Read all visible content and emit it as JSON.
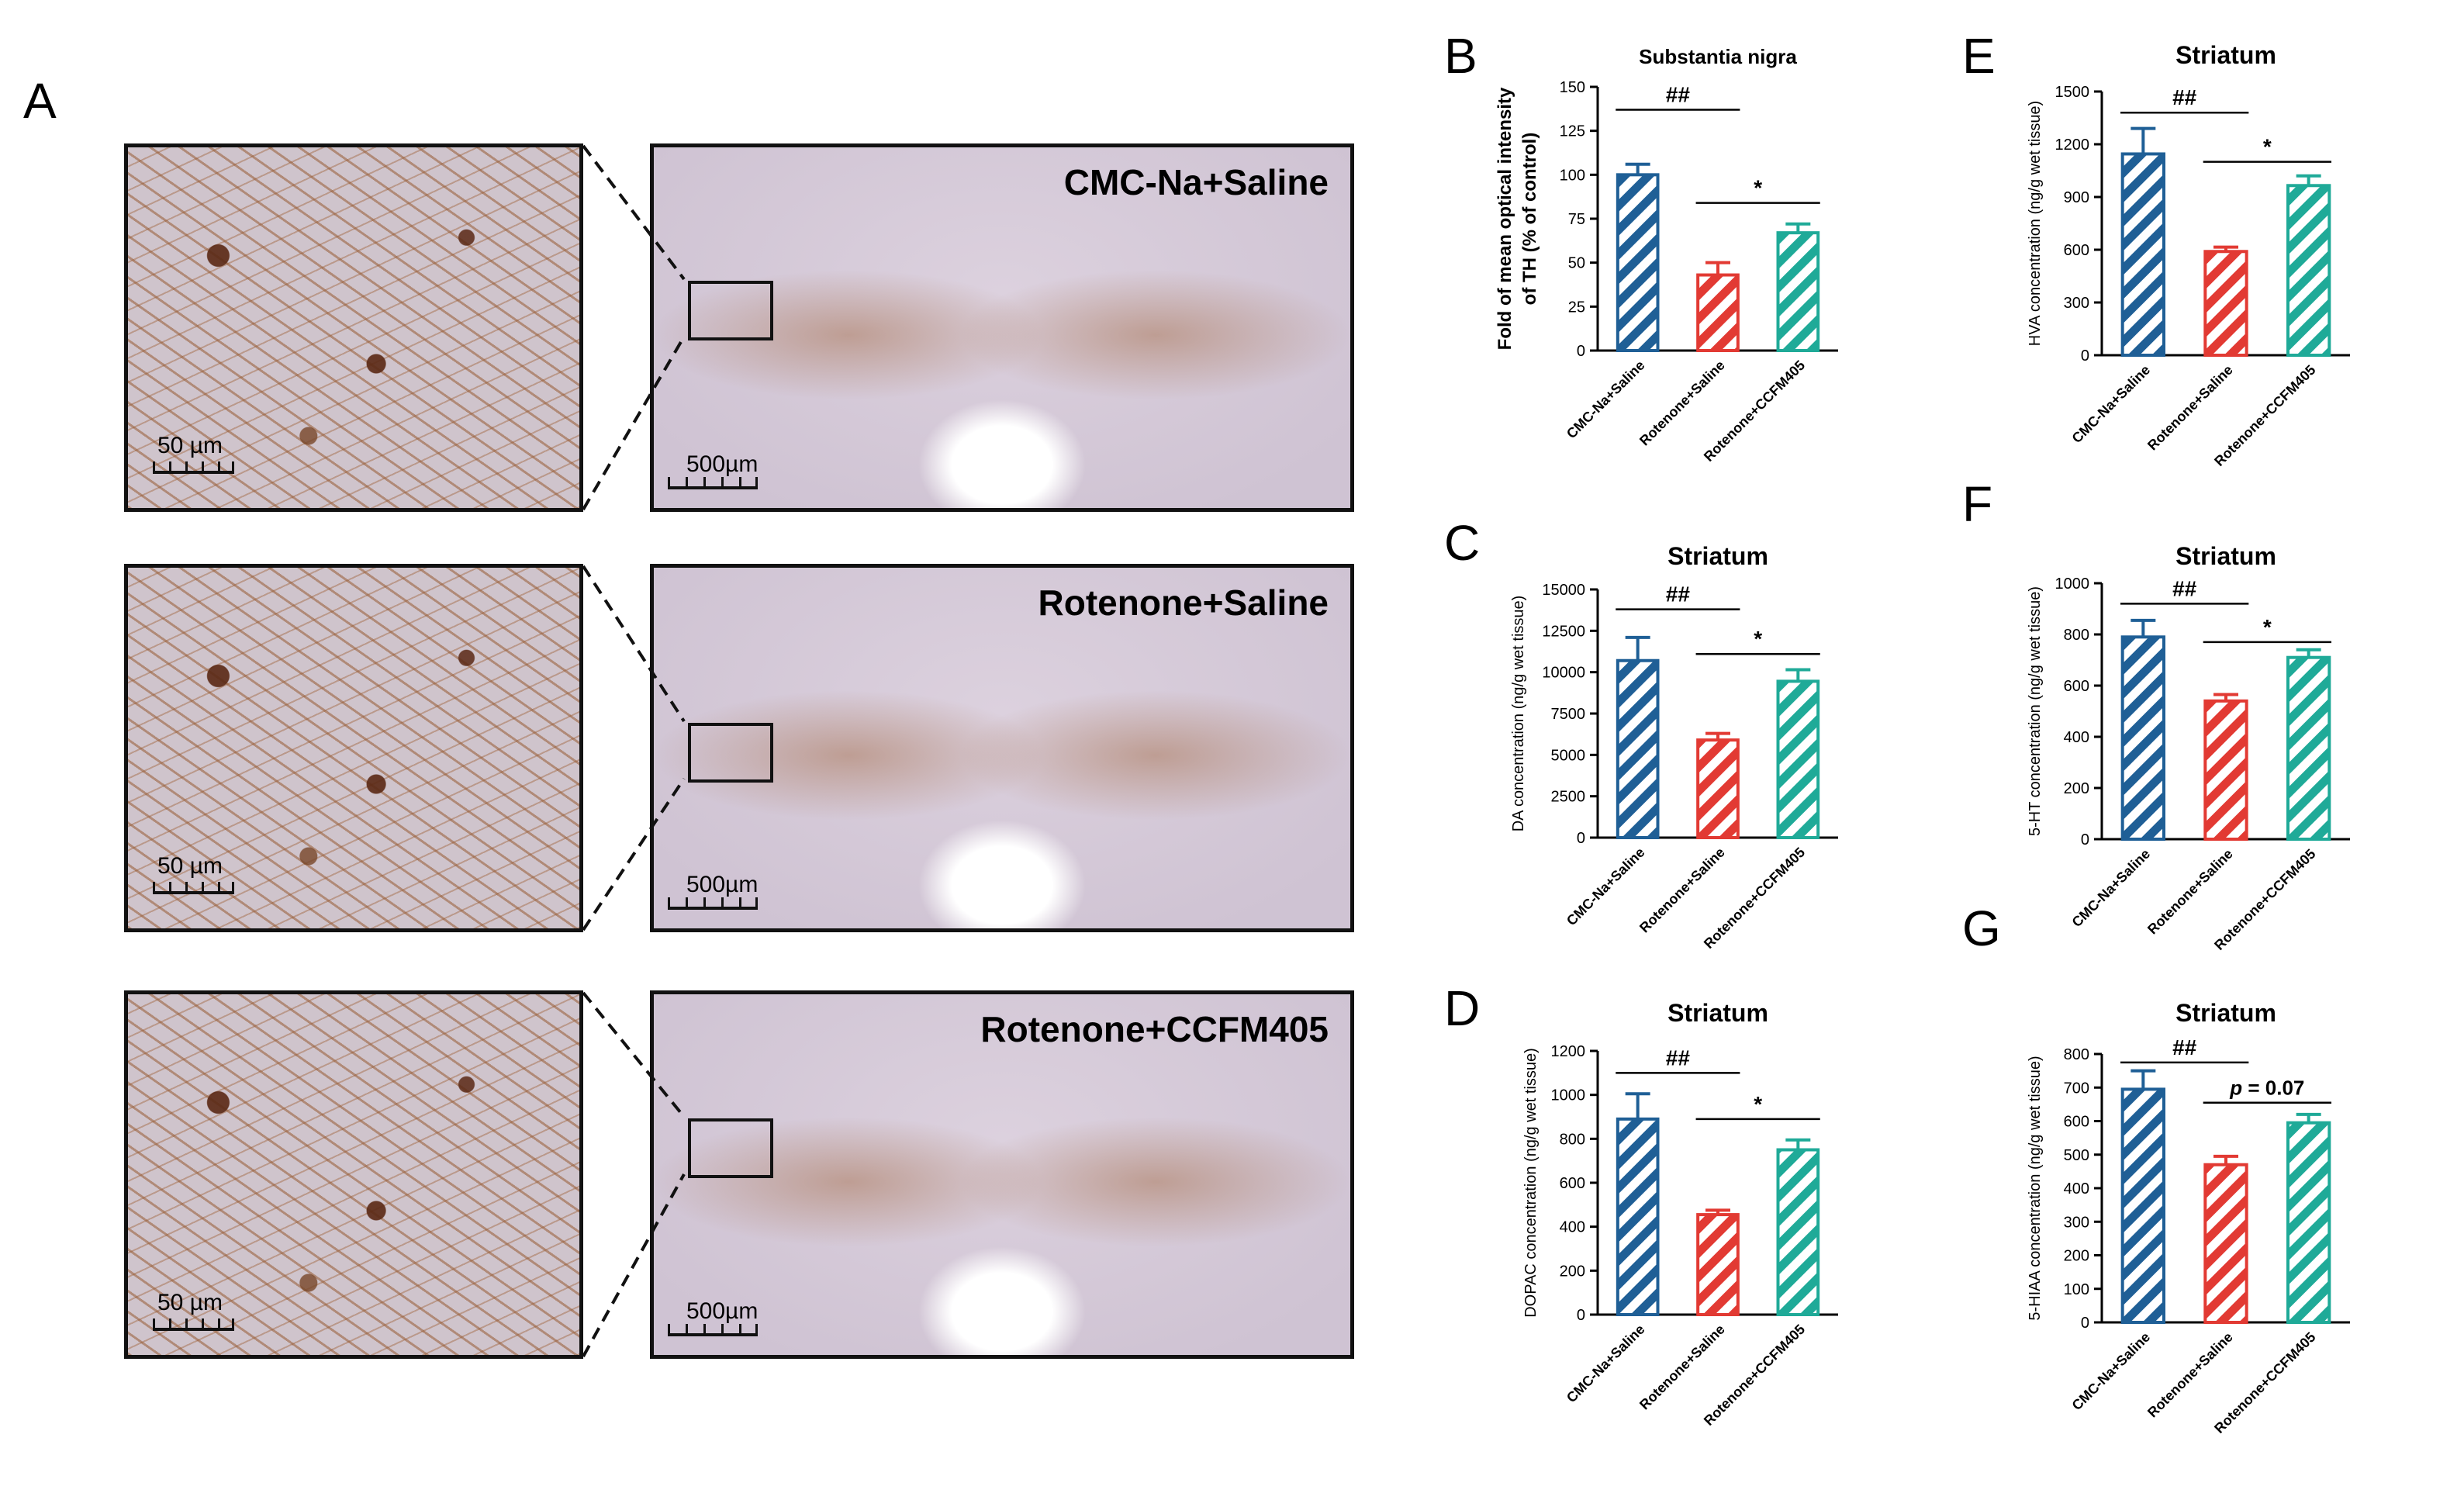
{
  "panel_a": {
    "letter": "A",
    "rows": [
      {
        "group": "CMC-Na+Saline",
        "inset_scale": "50 µm",
        "section_scale": "500µm",
        "small_scale": "500 µm",
        "inset_small": "50 µm"
      },
      {
        "group": "Rotenone+Saline",
        "inset_scale": "50 µm",
        "section_scale": "500µm",
        "small_scale": "500 µm",
        "inset_small": "50 µm"
      },
      {
        "group": "Rotenone+CCFM405",
        "inset_scale": "50 µm",
        "section_scale": "500µm",
        "small_scale": "500 µm",
        "inset_small": "50 µm"
      }
    ]
  },
  "colors": {
    "cmc": "#1f5f96",
    "rot_saline": "#e23a33",
    "rot_ccfm": "#1faa98"
  },
  "chart_data": [
    {
      "id": "B",
      "letter": "B",
      "type": "bar",
      "title": "Substantia nigra",
      "ylabel_lines": [
        "Fold of mean optical intensity",
        "of TH (% of control)"
      ],
      "categories": [
        "CMC-Na+Saline",
        "Rotenone+Saline",
        "Rotenone+CCFM405"
      ],
      "values": [
        100,
        43,
        67
      ],
      "errors": [
        6,
        7,
        5
      ],
      "ylim": [
        0,
        150
      ],
      "yticks": [
        "0",
        "25",
        "50",
        "75",
        "100",
        "125",
        "150"
      ],
      "annotations": [
        {
          "text": "##",
          "from": 0,
          "to": 1,
          "y": 137
        },
        {
          "text": "*",
          "from": 1,
          "to": 2,
          "y": 84
        }
      ]
    },
    {
      "id": "C",
      "letter": "C",
      "type": "bar",
      "title": "Striatum",
      "ylabel_lines": [
        "DA concentration (ng/g wet tissue)"
      ],
      "categories": [
        "CMC-Na+Saline",
        "Rotenone+Saline",
        "Rotenone+CCFM405"
      ],
      "values": [
        10700,
        5900,
        9450
      ],
      "errors": [
        1400,
        400,
        700
      ],
      "ylim": [
        0,
        15000
      ],
      "yticks": [
        "0",
        "2500",
        "5000",
        "7500",
        "10000",
        "12500",
        "15000"
      ],
      "annotations": [
        {
          "text": "##",
          "from": 0,
          "to": 1,
          "y": 13800
        },
        {
          "text": "*",
          "from": 1,
          "to": 2,
          "y": 11100
        }
      ]
    },
    {
      "id": "D",
      "letter": "D",
      "type": "bar",
      "title": "Striatum",
      "ylabel_lines": [
        "DOPAC concentration (ng/g wet tissue)"
      ],
      "categories": [
        "CMC-Na+Saline",
        "Rotenone+Saline",
        "Rotenone+CCFM405"
      ],
      "values": [
        890,
        455,
        750
      ],
      "errors": [
        115,
        20,
        45
      ],
      "ylim": [
        0,
        1200
      ],
      "yticks": [
        "0",
        "200",
        "400",
        "600",
        "800",
        "1000",
        "1200"
      ],
      "annotations": [
        {
          "text": "##",
          "from": 0,
          "to": 1,
          "y": 1100
        },
        {
          "text": "*",
          "from": 1,
          "to": 2,
          "y": 890
        }
      ]
    },
    {
      "id": "E",
      "letter": "E",
      "type": "bar",
      "title": "Striatum",
      "ylabel_lines": [
        "HVA concentration (ng/g wet tissue)"
      ],
      "categories": [
        "CMC-Na+Saline",
        "Rotenone+Saline",
        "Rotenone+CCFM405"
      ],
      "values": [
        1145,
        590,
        965
      ],
      "errors": [
        145,
        25,
        55
      ],
      "ylim": [
        0,
        1500
      ],
      "yticks": [
        "0",
        "300",
        "600",
        "900",
        "1200",
        "1500"
      ],
      "annotations": [
        {
          "text": "##",
          "from": 0,
          "to": 1,
          "y": 1380
        },
        {
          "text": "*",
          "from": 1,
          "to": 2,
          "y": 1100
        }
      ]
    },
    {
      "id": "F",
      "letter": "F",
      "type": "bar",
      "title": "Striatum",
      "ylabel_lines": [
        "5-HT concentration (ng/g wet tissue)"
      ],
      "categories": [
        "CMC-Na+Saline",
        "Rotenone+Saline",
        "Rotenone+CCFM405"
      ],
      "values": [
        790,
        540,
        710
      ],
      "errors": [
        65,
        25,
        30
      ],
      "ylim": [
        0,
        1000
      ],
      "yticks": [
        "0",
        "200",
        "400",
        "600",
        "800",
        "1000"
      ],
      "annotations": [
        {
          "text": "##",
          "from": 0,
          "to": 1,
          "y": 920
        },
        {
          "text": "*",
          "from": 1,
          "to": 2,
          "y": 770
        }
      ]
    },
    {
      "id": "G",
      "letter": "G",
      "type": "bar",
      "title": "Striatum",
      "ylabel_lines": [
        "5-HIAA concentration (ng/g wet tissue)"
      ],
      "categories": [
        "CMC-Na+Saline",
        "Rotenone+Saline",
        "Rotenone+CCFM405"
      ],
      "values": [
        695,
        470,
        595
      ],
      "errors": [
        55,
        25,
        25
      ],
      "ylim": [
        0,
        800
      ],
      "yticks": [
        "0",
        "100",
        "200",
        "300",
        "400",
        "500",
        "600",
        "700",
        "800"
      ],
      "annotations": [
        {
          "text": "##",
          "from": 0,
          "to": 1,
          "y": 775
        },
        {
          "text": "p = 0.07",
          "from": 1,
          "to": 2,
          "y": 655,
          "italic_p": true
        }
      ]
    }
  ]
}
